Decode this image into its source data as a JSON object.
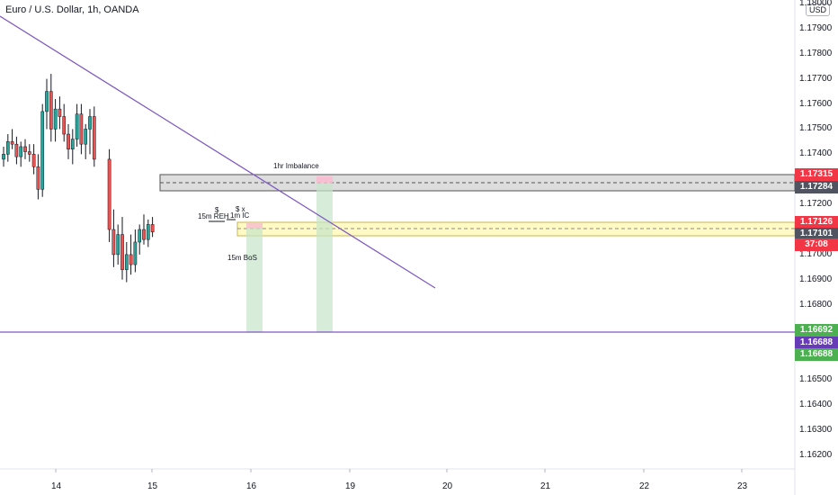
{
  "header": {
    "title": "Euro / U.S. Dollar, 1h, OANDA",
    "currency_button": "USD"
  },
  "colors": {
    "up": "#26a69a",
    "down": "#ef5350",
    "trendline": "#7e57c2",
    "gray_zone": "#9e9e9e",
    "yellow_zone": "#fff9c4",
    "green_zone": "#c8e6c9",
    "red_tag": "#f23645",
    "gray_tag": "#505460",
    "green_tag": "#4caf50",
    "purple_tag": "#673ab7"
  },
  "price_axis": {
    "labels": [
      "1.18000",
      "1.17900",
      "1.17800",
      "1.17700",
      "1.17600",
      "1.17500",
      "1.17400",
      "1.17300",
      "1.17200",
      "1.17100",
      "1.17000",
      "1.16900",
      "1.16800",
      "1.16700",
      "1.16600",
      "1.16500",
      "1.16400",
      "1.16300",
      "1.16200"
    ]
  },
  "price_tags": [
    {
      "label": "1.17315",
      "color": "red"
    },
    {
      "label": "1.17284",
      "color": "gray"
    },
    {
      "label": "1.17126",
      "color": "red"
    },
    {
      "label": "1.17101",
      "color": "gray"
    },
    {
      "label": "37:08",
      "color": "red"
    },
    {
      "label": "1.16692",
      "color": "green"
    },
    {
      "label": "1.16688",
      "color": "purple"
    },
    {
      "label": "1.16688",
      "color": "green"
    }
  ],
  "time_axis": {
    "labels": [
      "14",
      "15",
      "16",
      "19",
      "20",
      "21",
      "22",
      "23"
    ]
  },
  "annotations": {
    "imbalance": "1hr Imbalance",
    "reh_dollar": "$",
    "reh": "15m REH",
    "ic_marker": "$ x",
    "ic": "1m IC",
    "bos": "15m BoS"
  },
  "chart_data": {
    "type": "candlestick",
    "symbol": "Euro / U.S. Dollar",
    "timeframe": "1h",
    "ylim": [
      1.1611,
      1.1805
    ],
    "candles_approx": [
      [
        1.1738,
        1.1743,
        1.1735,
        1.174
      ],
      [
        1.174,
        1.1748,
        1.1737,
        1.1745
      ],
      [
        1.1745,
        1.175,
        1.1742,
        1.1744
      ],
      [
        1.1744,
        1.1747,
        1.1736,
        1.1739
      ],
      [
        1.1739,
        1.1745,
        1.1735,
        1.1743
      ],
      [
        1.1743,
        1.1746,
        1.1738,
        1.1741
      ],
      [
        1.1741,
        1.1744,
        1.1737,
        1.174
      ],
      [
        1.174,
        1.1744,
        1.1732,
        1.1735
      ],
      [
        1.1735,
        1.174,
        1.1722,
        1.1726
      ],
      [
        1.1726,
        1.176,
        1.1723,
        1.1757
      ],
      [
        1.1757,
        1.177,
        1.175,
        1.1765
      ],
      [
        1.1765,
        1.1772,
        1.1745,
        1.175
      ],
      [
        1.175,
        1.1762,
        1.1745,
        1.1758
      ],
      [
        1.1758,
        1.1763,
        1.175,
        1.1755
      ],
      [
        1.1755,
        1.176,
        1.1745,
        1.1748
      ],
      [
        1.1748,
        1.1752,
        1.1738,
        1.1742
      ],
      [
        1.1742,
        1.175,
        1.1736,
        1.1746
      ],
      [
        1.1746,
        1.176,
        1.1743,
        1.1756
      ],
      [
        1.1756,
        1.176,
        1.174,
        1.1744
      ],
      [
        1.1744,
        1.1752,
        1.1738,
        1.175
      ],
      [
        1.175,
        1.1758,
        1.174,
        1.1755
      ],
      [
        1.1755,
        1.1759,
        1.1735,
        1.1738
      ],
      [
        1.1738,
        1.1742,
        1.1705,
        1.171
      ],
      [
        1.171,
        1.1718,
        1.1695,
        1.17
      ],
      [
        1.17,
        1.1712,
        1.1696,
        1.1708
      ],
      [
        1.1708,
        1.1715,
        1.169,
        1.1694
      ],
      [
        1.1694,
        1.1705,
        1.1689,
        1.17
      ],
      [
        1.17,
        1.1708,
        1.1692,
        1.1696
      ],
      [
        1.1696,
        1.171,
        1.1693,
        1.1705
      ],
      [
        1.1705,
        1.1712,
        1.17,
        1.171
      ],
      [
        1.171,
        1.1716,
        1.1704,
        1.1706
      ],
      [
        1.1706,
        1.1714,
        1.1703,
        1.1712
      ],
      [
        1.1712,
        1.1715,
        1.1707,
        1.1709
      ]
    ]
  }
}
